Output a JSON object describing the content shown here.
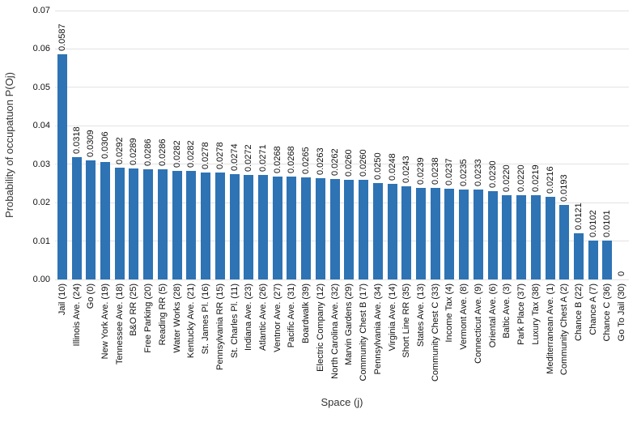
{
  "chart_data": {
    "type": "bar",
    "title": "",
    "xlabel": "Space (j)",
    "ylabel": "Probability of occupatuon  P(Oj)",
    "legend": "none",
    "grid": true,
    "ylim": [
      0,
      0.07
    ],
    "yticks": [
      "0.00",
      "0.01",
      "0.02",
      "0.03",
      "0.04",
      "0.05",
      "0.06",
      "0.07"
    ],
    "categories": [
      "Jail (10)",
      "Illinois Ave. (24)",
      "Go (0)",
      "New York Ave. (19)",
      "Tennessee Ave. (18)",
      "B&O RR (25)",
      "Free Parking (20)",
      "Reading RR (5)",
      "Water Works (28)",
      "Kentucky Ave. (21)",
      "St. James Pl. (16)",
      "Pennsylvania RR (15)",
      "St. Charles Pl. (11)",
      "Indiana Ave. (23)",
      "Atlantic Ave. (26)",
      "Ventnor Ave. (27)",
      "Pacific Ave. (31)",
      "Boardwalk (39)",
      "Electric Company (12)",
      "North Carolina Ave. (32)",
      "Marvin Gardens (29)",
      "Community Chest B (17)",
      "Pennsylvania Ave. (34)",
      "Virginia Ave. (14)",
      "Short Line RR (35)",
      "States Ave. (13)",
      "Community Chest C (33)",
      "Income Tax (4)",
      "Vermont Ave. (8)",
      "Connecticut Ave. (9)",
      "Oriental Ave. (6)",
      "Baltic Ave. (3)",
      "Park Place (37)",
      "Luxury Tax (38)",
      "Mediterranean Ave. (1)",
      "Community Chest A (2)",
      "Chance B (22)",
      "Chance A (7)",
      "Chance C (36)",
      "Go To Jail (30)"
    ],
    "values": [
      0.0587,
      0.0318,
      0.0309,
      0.0306,
      0.0292,
      0.0289,
      0.0286,
      0.0286,
      0.0282,
      0.0282,
      0.0278,
      0.0278,
      0.0274,
      0.0272,
      0.0271,
      0.0268,
      0.0268,
      0.0265,
      0.0263,
      0.0262,
      0.026,
      0.026,
      0.025,
      0.0248,
      0.0243,
      0.0239,
      0.0238,
      0.0237,
      0.0235,
      0.0233,
      0.023,
      0.022,
      0.022,
      0.0219,
      0.0216,
      0.0193,
      0.0121,
      0.0102,
      0.0101,
      0
    ],
    "value_labels": [
      "0.0587",
      "0.0318",
      "0.0309",
      "0.0306",
      "0.0292",
      "0.0289",
      "0.0286",
      "0.0286",
      "0.0282",
      "0.0282",
      "0.0278",
      "0.0278",
      "0.0274",
      "0.0272",
      "0.0271",
      "0.0268",
      "0.0268",
      "0.0265",
      "0.0263",
      "0.0262",
      "0.0260",
      "0.0260",
      "0.0250",
      "0.0248",
      "0.0243",
      "0.0239",
      "0.0238",
      "0.0237",
      "0.0235",
      "0.0233",
      "0.0230",
      "0.0220",
      "0.0220",
      "0.0219",
      "0.0216",
      "0.0193",
      "0.0121",
      "0.0102",
      "0.0101",
      "0"
    ],
    "bar_color": "#2E73B4",
    "gridline_color": "#E3E3E3",
    "label_color": "#111111",
    "axis_title_color": "#333333",
    "background": "#FFFFFF"
  }
}
